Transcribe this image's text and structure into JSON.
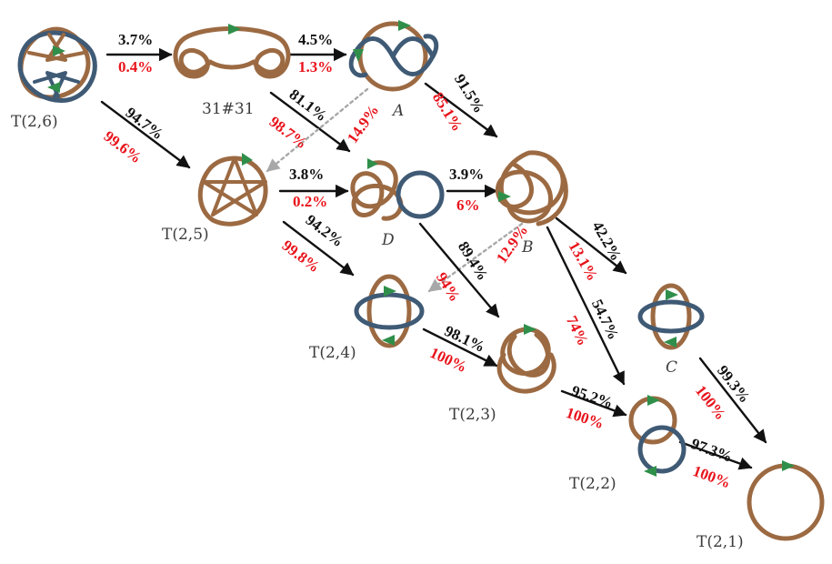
{
  "colors": {
    "strand_brown": "#9c6a42",
    "strand_blue": "#3f5a75",
    "arrow_green": "#2f8f4a",
    "arrow_solid": "#111111",
    "arrow_dotted": "#a8a8a8",
    "pct_black": "#111111",
    "pct_red": "#e8141c"
  },
  "labels": {
    "t26": "T(2,6)",
    "k3131": "31#31",
    "a": "A",
    "t25": "T(2,5)",
    "d": "D",
    "b": "B",
    "t24": "T(2,4)",
    "t23": "T(2,3)",
    "c": "C",
    "t22": "T(2,2)",
    "t21": "T(2,1)"
  },
  "transitions": [
    {
      "from": "T(2,6)",
      "to": "31#31",
      "top": "3.7%",
      "bottom": "0.4%"
    },
    {
      "from": "31#31",
      "to": "A",
      "top": "4.5%",
      "bottom": "1.3%"
    },
    {
      "from": "T(2,6)",
      "to": "T(2,5)",
      "top": "94.7%",
      "bottom": "99.6%"
    },
    {
      "from": "31#31",
      "to": "D",
      "top": "81.1%",
      "bottom": "98.7%"
    },
    {
      "from": "A",
      "to": "T(2,5)",
      "top": "14.9%",
      "style": "dotted"
    },
    {
      "from": "A",
      "to": "B",
      "top": "91.5%",
      "bottom": "85.1%"
    },
    {
      "from": "T(2,5)",
      "to": "D",
      "top": "3.8%",
      "bottom": "0.2%"
    },
    {
      "from": "D",
      "to": "B",
      "top": "3.9%",
      "bottom": "6%"
    },
    {
      "from": "T(2,5)",
      "to": "T(2,4)",
      "top": "94.2%",
      "bottom": "99.8%"
    },
    {
      "from": "B",
      "to": "T(2,4)",
      "top": "12.9%",
      "bottom": "94%",
      "style": "dotted"
    },
    {
      "from": "D",
      "to": "T(2,3)",
      "top": "89.4%"
    },
    {
      "from": "B",
      "to": "C",
      "top": "42.2%",
      "bottom": "13.1%"
    },
    {
      "from": "B",
      "to": "T(2,2)",
      "top": "54.7%",
      "bottom": "74%"
    },
    {
      "from": "T(2,4)",
      "to": "T(2,3)",
      "top": "98.1%",
      "bottom": "100%"
    },
    {
      "from": "T(2,3)",
      "to": "T(2,2)",
      "top": "95.2%",
      "bottom": "100%"
    },
    {
      "from": "C",
      "to": "T(2,1)",
      "top": "99.3%",
      "bottom": "100%"
    },
    {
      "from": "T(2,2)",
      "to": "T(2,1)",
      "top": "97.3%",
      "bottom": "100%"
    }
  ]
}
